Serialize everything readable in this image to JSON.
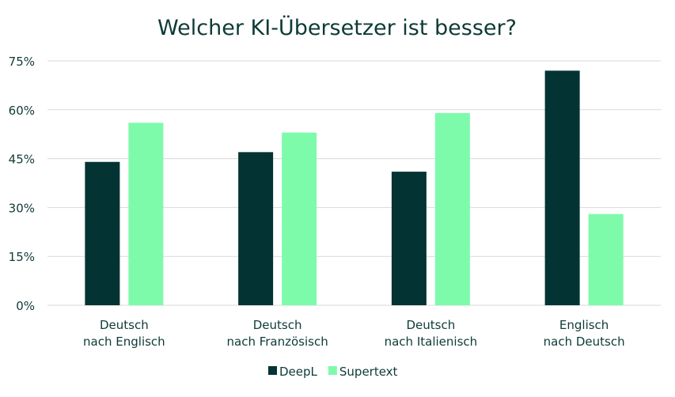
{
  "chart_data": {
    "type": "bar",
    "title": "Welcher KI-Übersetzer ist besser?",
    "categories": [
      [
        "Deutsch",
        "nach Englisch"
      ],
      [
        "Deutsch",
        "nach Französisch"
      ],
      [
        "Deutsch",
        "nach Italienisch"
      ],
      [
        "Englisch",
        "nach Deutsch"
      ]
    ],
    "series": [
      {
        "name": "DeepL",
        "color": "#033332",
        "values": [
          44,
          47,
          41,
          72
        ]
      },
      {
        "name": "Supertext",
        "color": "#7dfbab",
        "values": [
          56,
          53,
          59,
          28
        ]
      }
    ],
    "yticks": [
      "0%",
      "15%",
      "30%",
      "45%",
      "60%",
      "75%"
    ],
    "ytick_values": [
      0,
      15,
      30,
      45,
      60,
      75
    ],
    "ylim": [
      0,
      75
    ],
    "grid": true,
    "legend": "bottom-center",
    "text_color": "#0d3b36"
  }
}
